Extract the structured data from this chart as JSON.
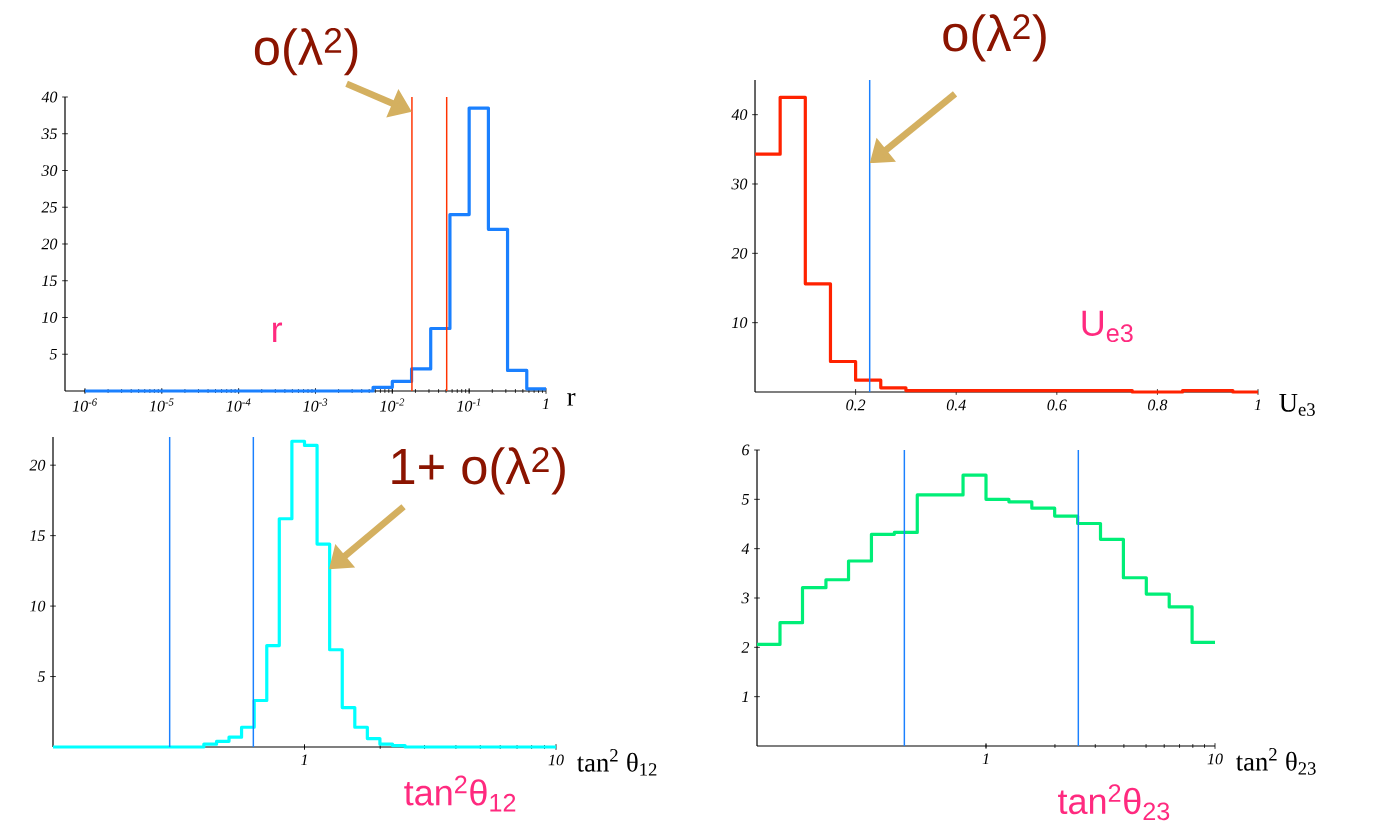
{
  "chart_data": [
    {
      "type": "histogram",
      "log": "x",
      "xlabel": "r",
      "color": "#1a80ff",
      "bins": [
        1e-06,
        1.78e-06,
        3.16e-06,
        5.62e-06,
        1e-05,
        1.78e-05,
        3.16e-05,
        5.62e-05,
        0.0001,
        0.000178,
        0.000316,
        0.000562,
        0.001,
        0.00178,
        0.00316,
        0.00562,
        0.01,
        0.0178,
        0.0316,
        0.0562,
        0.1,
        0.178,
        0.316,
        0.562,
        1
      ],
      "values": [
        0,
        0,
        0,
        0,
        0,
        0,
        0,
        0,
        0,
        0,
        0,
        0,
        0,
        0,
        0,
        0.5,
        1.3,
        3,
        8.5,
        24,
        38.5,
        22,
        2.8,
        0.3
      ],
      "xlim": [
        5.5e-07,
        1
      ],
      "ylim": [
        0,
        40
      ],
      "xticks": [
        {
          "value": 1e-06,
          "label": "10$^{-6}$"
        },
        {
          "value": 1e-05,
          "label": "10$^{-5}$"
        },
        {
          "value": 0.0001,
          "label": "10$^{-4}$"
        },
        {
          "value": 0.001,
          "label": "10$^{-3}$"
        },
        {
          "value": 0.01,
          "label": "10$^{-2}$"
        },
        {
          "value": 0.1,
          "label": "10$^{-1}$"
        },
        1
      ],
      "yticks": [
        5,
        10,
        15,
        20,
        25,
        30,
        35,
        40
      ],
      "ref_lines": [
        {
          "axis": "x",
          "value": 0.018,
          "color": "#ff3300"
        },
        {
          "axis": "x",
          "value": 0.051,
          "color": "#ff3300"
        }
      ],
      "annotations": [
        {
          "text": "o(λ$^{2}$)",
          "x": 0.018,
          "y": 38
        },
        "r"
      ]
    },
    {
      "type": "histogram",
      "xlabel": "U$_{e3}$",
      "color": "#ff2200",
      "bins": [
        0,
        0.05,
        0.1,
        0.15,
        0.2,
        0.25,
        0.3,
        0.35,
        0.4,
        0.45,
        0.5,
        0.55,
        0.6,
        0.65,
        0.7,
        0.75,
        0.8,
        0.85,
        0.9,
        0.95,
        1
      ],
      "values": [
        34.3,
        42.5,
        15.6,
        4.4,
        1.7,
        0.6,
        0.2,
        0.2,
        0.2,
        0.2,
        0.2,
        0.2,
        0.2,
        0.2,
        0.2,
        0,
        0,
        0.2,
        0.2,
        0
      ],
      "xlim": [
        0,
        1
      ],
      "ylim": [
        0,
        45
      ],
      "xticks": [
        0.2,
        0.4,
        0.6,
        0.8,
        1
      ],
      "yticks": [
        10,
        20,
        30,
        40
      ],
      "ref_lines": [
        {
          "axis": "x",
          "value": 0.228,
          "color": "#1a80ff"
        }
      ],
      "annotations": [
        {
          "text": "o(λ$^{2}$)",
          "x": 0.228,
          "y": 33
        },
        "U$_{e3}$"
      ]
    },
    {
      "type": "histogram",
      "log": "x",
      "xlabel": "tan$^{2}$ θ$_{12}$",
      "color": "#00ffff",
      "bins": [
        0.1,
        0.112,
        0.126,
        0.141,
        0.158,
        0.178,
        0.2,
        0.224,
        0.251,
        0.282,
        0.316,
        0.355,
        0.398,
        0.447,
        0.501,
        0.562,
        0.631,
        0.708,
        0.794,
        0.891,
        1,
        1.122,
        1.259,
        1.413,
        1.585,
        1.778,
        1.995,
        2.239,
        2.512,
        2.818,
        3.162,
        3.548,
        3.981,
        4.467,
        5.012,
        5.623,
        6.31,
        7.079,
        7.943,
        8.913,
        10
      ],
      "values": [
        0,
        0,
        0,
        0,
        0,
        0,
        0,
        0,
        0,
        0,
        0,
        0,
        0.2,
        0.4,
        0.7,
        1.4,
        3.3,
        7.2,
        16.2,
        21.7,
        21.4,
        14.4,
        6.9,
        2.8,
        1.4,
        0.6,
        0.2,
        0.1,
        0,
        0,
        0,
        0,
        0,
        0,
        0,
        0,
        0,
        0,
        0,
        0
      ],
      "xlim": [
        0.1,
        10
      ],
      "ylim": [
        0,
        22
      ],
      "xticks": [
        1,
        10
      ],
      "yticks": [
        5,
        10,
        15,
        20
      ],
      "ref_lines": [
        {
          "axis": "x",
          "value": 0.291,
          "color": "#1a80ff"
        },
        {
          "axis": "x",
          "value": 0.626,
          "color": "#1a80ff"
        }
      ],
      "annotations": [
        {
          "text": "1+ o(λ$^{2}$)",
          "x": 1.25,
          "y": 12.6
        },
        "tan$^{2}$θ$_{12}$"
      ]
    },
    {
      "type": "histogram",
      "log": "x",
      "xlabel": "tan$^{2}$ θ$_{23}$",
      "color": "#00ee77",
      "bins": [
        0.1,
        0.126,
        0.158,
        0.2,
        0.251,
        0.316,
        0.398,
        0.501,
        0.631,
        0.794,
        1,
        1.259,
        1.585,
        1.995,
        2.512,
        3.162,
        3.981,
        5.012,
        6.31,
        7.943,
        10
      ],
      "values": [
        2.06,
        2.5,
        3.21,
        3.37,
        3.75,
        4.29,
        4.33,
        5.09,
        5.09,
        5.49,
        5.0,
        4.95,
        4.82,
        4.66,
        4.51,
        4.19,
        3.41,
        3.08,
        2.82,
        2.1
      ],
      "xlim": [
        0.1,
        10
      ],
      "ylim": [
        0,
        6
      ],
      "xticks": [
        1,
        10
      ],
      "yticks": [
        1,
        2,
        3,
        4,
        5,
        6
      ],
      "ref_lines": [
        {
          "axis": "x",
          "value": 0.44,
          "color": "#1a80ff"
        },
        {
          "axis": "x",
          "value": 2.53,
          "color": "#1a80ff"
        }
      ],
      "annotations": [
        "tan$^{2}$θ$_{23}$"
      ]
    }
  ]
}
